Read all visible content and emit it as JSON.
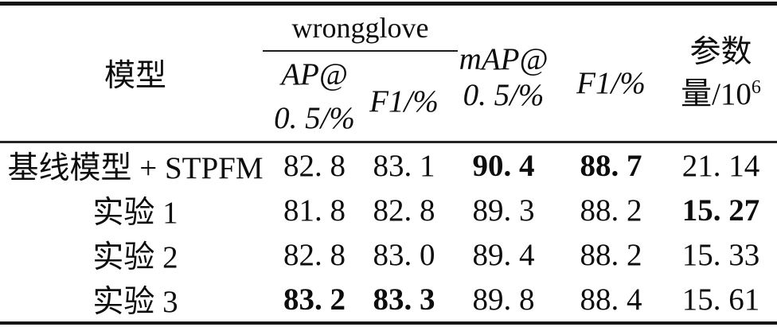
{
  "meta": {
    "kind": "academic-paper-ablation-table",
    "language": "zh-CN"
  },
  "colors": {
    "background": "#ffffff",
    "text": "#0d0d0d",
    "rule_heavy": "#161616",
    "rule_mid": "#242424",
    "rule_group": "#1c1c1c"
  },
  "header": {
    "model": "模型",
    "group_title": "wrongglove",
    "ap_line1": "AP@",
    "ap_line2": "0. 5/%",
    "f1_wrongglove": "F1/%",
    "map_line1": "mAP@",
    "map_line2": "0. 5/%",
    "f1": "F1/%",
    "params_line1": "参数",
    "params_line2_base": "量/10",
    "params_line2_sup": "6"
  },
  "col_keys": [
    "model",
    "ap05",
    "f1-wrongglove",
    "map05",
    "f1",
    "params"
  ],
  "rows": [
    {
      "cells": [
        {
          "v": "基线模型 + STPFM"
        },
        {
          "v": "82. 8"
        },
        {
          "v": "83. 1"
        },
        {
          "v": "90. 4",
          "b": true
        },
        {
          "v": "88. 7",
          "b": true
        },
        {
          "v": "21. 14"
        }
      ]
    },
    {
      "cells": [
        {
          "v": "实验 1"
        },
        {
          "v": "81. 8"
        },
        {
          "v": "82. 8"
        },
        {
          "v": "89. 3"
        },
        {
          "v": "88. 2"
        },
        {
          "v": "15. 27",
          "b": true
        }
      ]
    },
    {
      "cells": [
        {
          "v": "实验 2"
        },
        {
          "v": "82. 8"
        },
        {
          "v": "83. 0"
        },
        {
          "v": "89. 4"
        },
        {
          "v": "88. 2"
        },
        {
          "v": "15. 33"
        }
      ]
    },
    {
      "cells": [
        {
          "v": "实验 3"
        },
        {
          "v": "83. 2",
          "b": true
        },
        {
          "v": "83. 3",
          "b": true
        },
        {
          "v": "89. 8"
        },
        {
          "v": "88. 4"
        },
        {
          "v": "15. 61"
        }
      ]
    }
  ],
  "chart_data": {
    "type": "table",
    "columns": [
      "模型",
      "wrongglove AP@0.5/%",
      "wrongglove F1/%",
      "mAP@0.5/%",
      "F1/%",
      "参数量/10^6"
    ],
    "rows": [
      [
        "基线模型 + STPFM",
        82.8,
        83.1,
        90.4,
        88.7,
        21.14
      ],
      [
        "实验 1",
        81.8,
        82.8,
        89.3,
        88.2,
        15.27
      ],
      [
        "实验 2",
        82.8,
        83.0,
        89.4,
        88.2,
        15.33
      ],
      [
        "实验 3",
        83.2,
        83.3,
        89.8,
        88.4,
        15.61
      ]
    ]
  }
}
